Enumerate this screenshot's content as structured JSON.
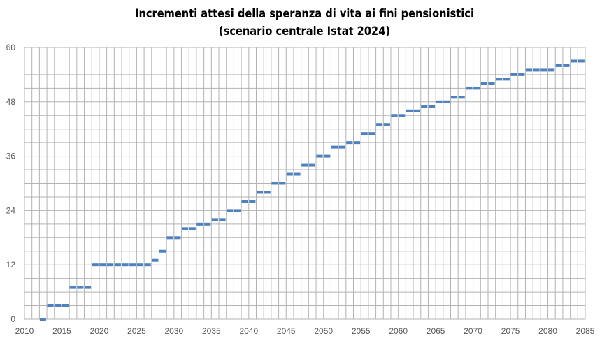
{
  "chart_data": {
    "type": "scatter",
    "marker": "dash",
    "title_line1": "Incrementi attesi della speranza di vita ai fini pensionistici",
    "title_line2": "(scenario centrale Istat 2024)",
    "xlabel": "",
    "ylabel": "",
    "xlim": [
      2010,
      2085
    ],
    "ylim": [
      0,
      60
    ],
    "xticks": [
      2010,
      2015,
      2020,
      2025,
      2030,
      2035,
      2040,
      2045,
      2050,
      2055,
      2060,
      2065,
      2070,
      2075,
      2080,
      2085
    ],
    "yticks": [
      0,
      12,
      24,
      36,
      48,
      60
    ],
    "grid": {
      "x_step": 1,
      "y_step": 3
    },
    "colors": {
      "series": "#4F81BD",
      "grid": "#B3B3B3"
    },
    "x": [
      2012,
      2013,
      2014,
      2015,
      2016,
      2017,
      2018,
      2019,
      2020,
      2021,
      2022,
      2023,
      2024,
      2025,
      2026,
      2027,
      2028,
      2029,
      2030,
      2031,
      2032,
      2033,
      2034,
      2035,
      2036,
      2037,
      2038,
      2039,
      2040,
      2041,
      2042,
      2043,
      2044,
      2045,
      2046,
      2047,
      2048,
      2049,
      2050,
      2051,
      2052,
      2053,
      2054,
      2055,
      2056,
      2057,
      2058,
      2059,
      2060,
      2061,
      2062,
      2063,
      2064,
      2065,
      2066,
      2067,
      2068,
      2069,
      2070,
      2071,
      2072,
      2073,
      2074,
      2075,
      2076,
      2077,
      2078,
      2079,
      2080,
      2081,
      2082,
      2083,
      2084
    ],
    "y": [
      0,
      3,
      3,
      3,
      7,
      7,
      7,
      12,
      12,
      12,
      12,
      12,
      12,
      12,
      12,
      13,
      15,
      18,
      18,
      20,
      20,
      21,
      21,
      22,
      22,
      24,
      24,
      26,
      26,
      28,
      28,
      30,
      30,
      32,
      32,
      34,
      34,
      36,
      36,
      38,
      38,
      39,
      39,
      41,
      41,
      43,
      43,
      45,
      45,
      46,
      46,
      47,
      47,
      48,
      48,
      49,
      49,
      51,
      51,
      52,
      52,
      53,
      53,
      54,
      54,
      55,
      55,
      55,
      55,
      56,
      56,
      57,
      57
    ]
  }
}
